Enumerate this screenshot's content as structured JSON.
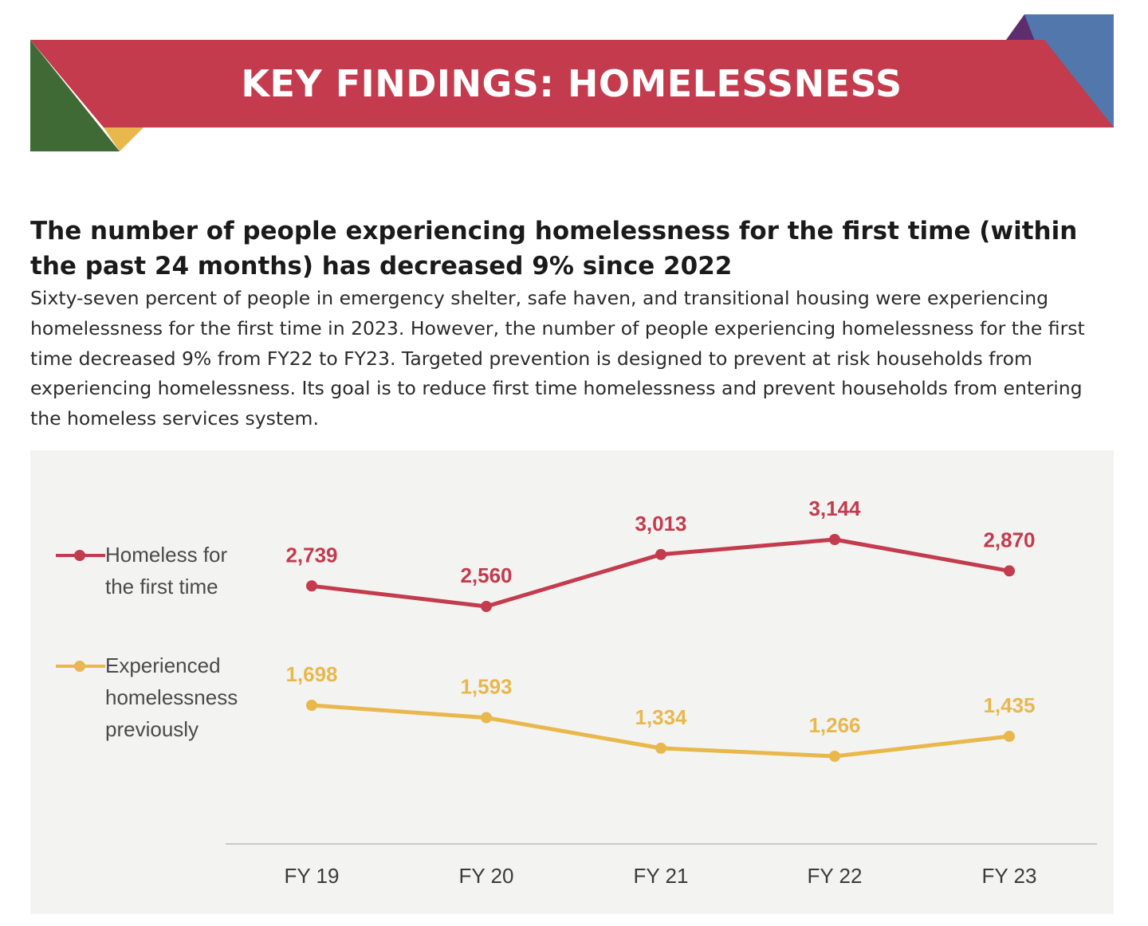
{
  "banner": {
    "title": "KEY FINDINGS: HOMELESSNESS",
    "colors": {
      "ribbon": "#c33b4d",
      "green": "#3f6a36",
      "gold": "#e9b84c",
      "blue": "#5177ad",
      "purple": "#5e2d6e"
    }
  },
  "headline": "The number of people experiencing homelessness for the first time (within the past 24 months) has decreased 9% since 2022",
  "body": "Sixty-seven percent of people in emergency shelter, safe haven, and transitional housing were experiencing homelessness for the first time in 2023. However, the number of people experiencing homelessness for the first time decreased 9% from FY22 to FY23. Targeted prevention is designed to prevent at risk households from experiencing homelessness. Its goal is to reduce first time homelessness and prevent households from entering the homeless services system.",
  "chart_data": {
    "type": "line",
    "categories": [
      "FY 19",
      "FY 20",
      "FY 21",
      "FY 22",
      "FY 23"
    ],
    "series": [
      {
        "name": "Homeless for the first time",
        "values": [
          2739,
          2560,
          3013,
          3144,
          2870
        ],
        "labels": [
          "2,739",
          "2,560",
          "3,013",
          "3,144",
          "2,870"
        ],
        "color": "#c33b4d"
      },
      {
        "name": "Experienced homelessness previously",
        "values": [
          1698,
          1593,
          1334,
          1266,
          1435
        ],
        "labels": [
          "1,698",
          "1,593",
          "1,334",
          "1,266",
          "1,435"
        ],
        "color": "#e9b84c"
      }
    ],
    "grid": false,
    "legend_position": "left",
    "background": "#f3f3f2"
  }
}
